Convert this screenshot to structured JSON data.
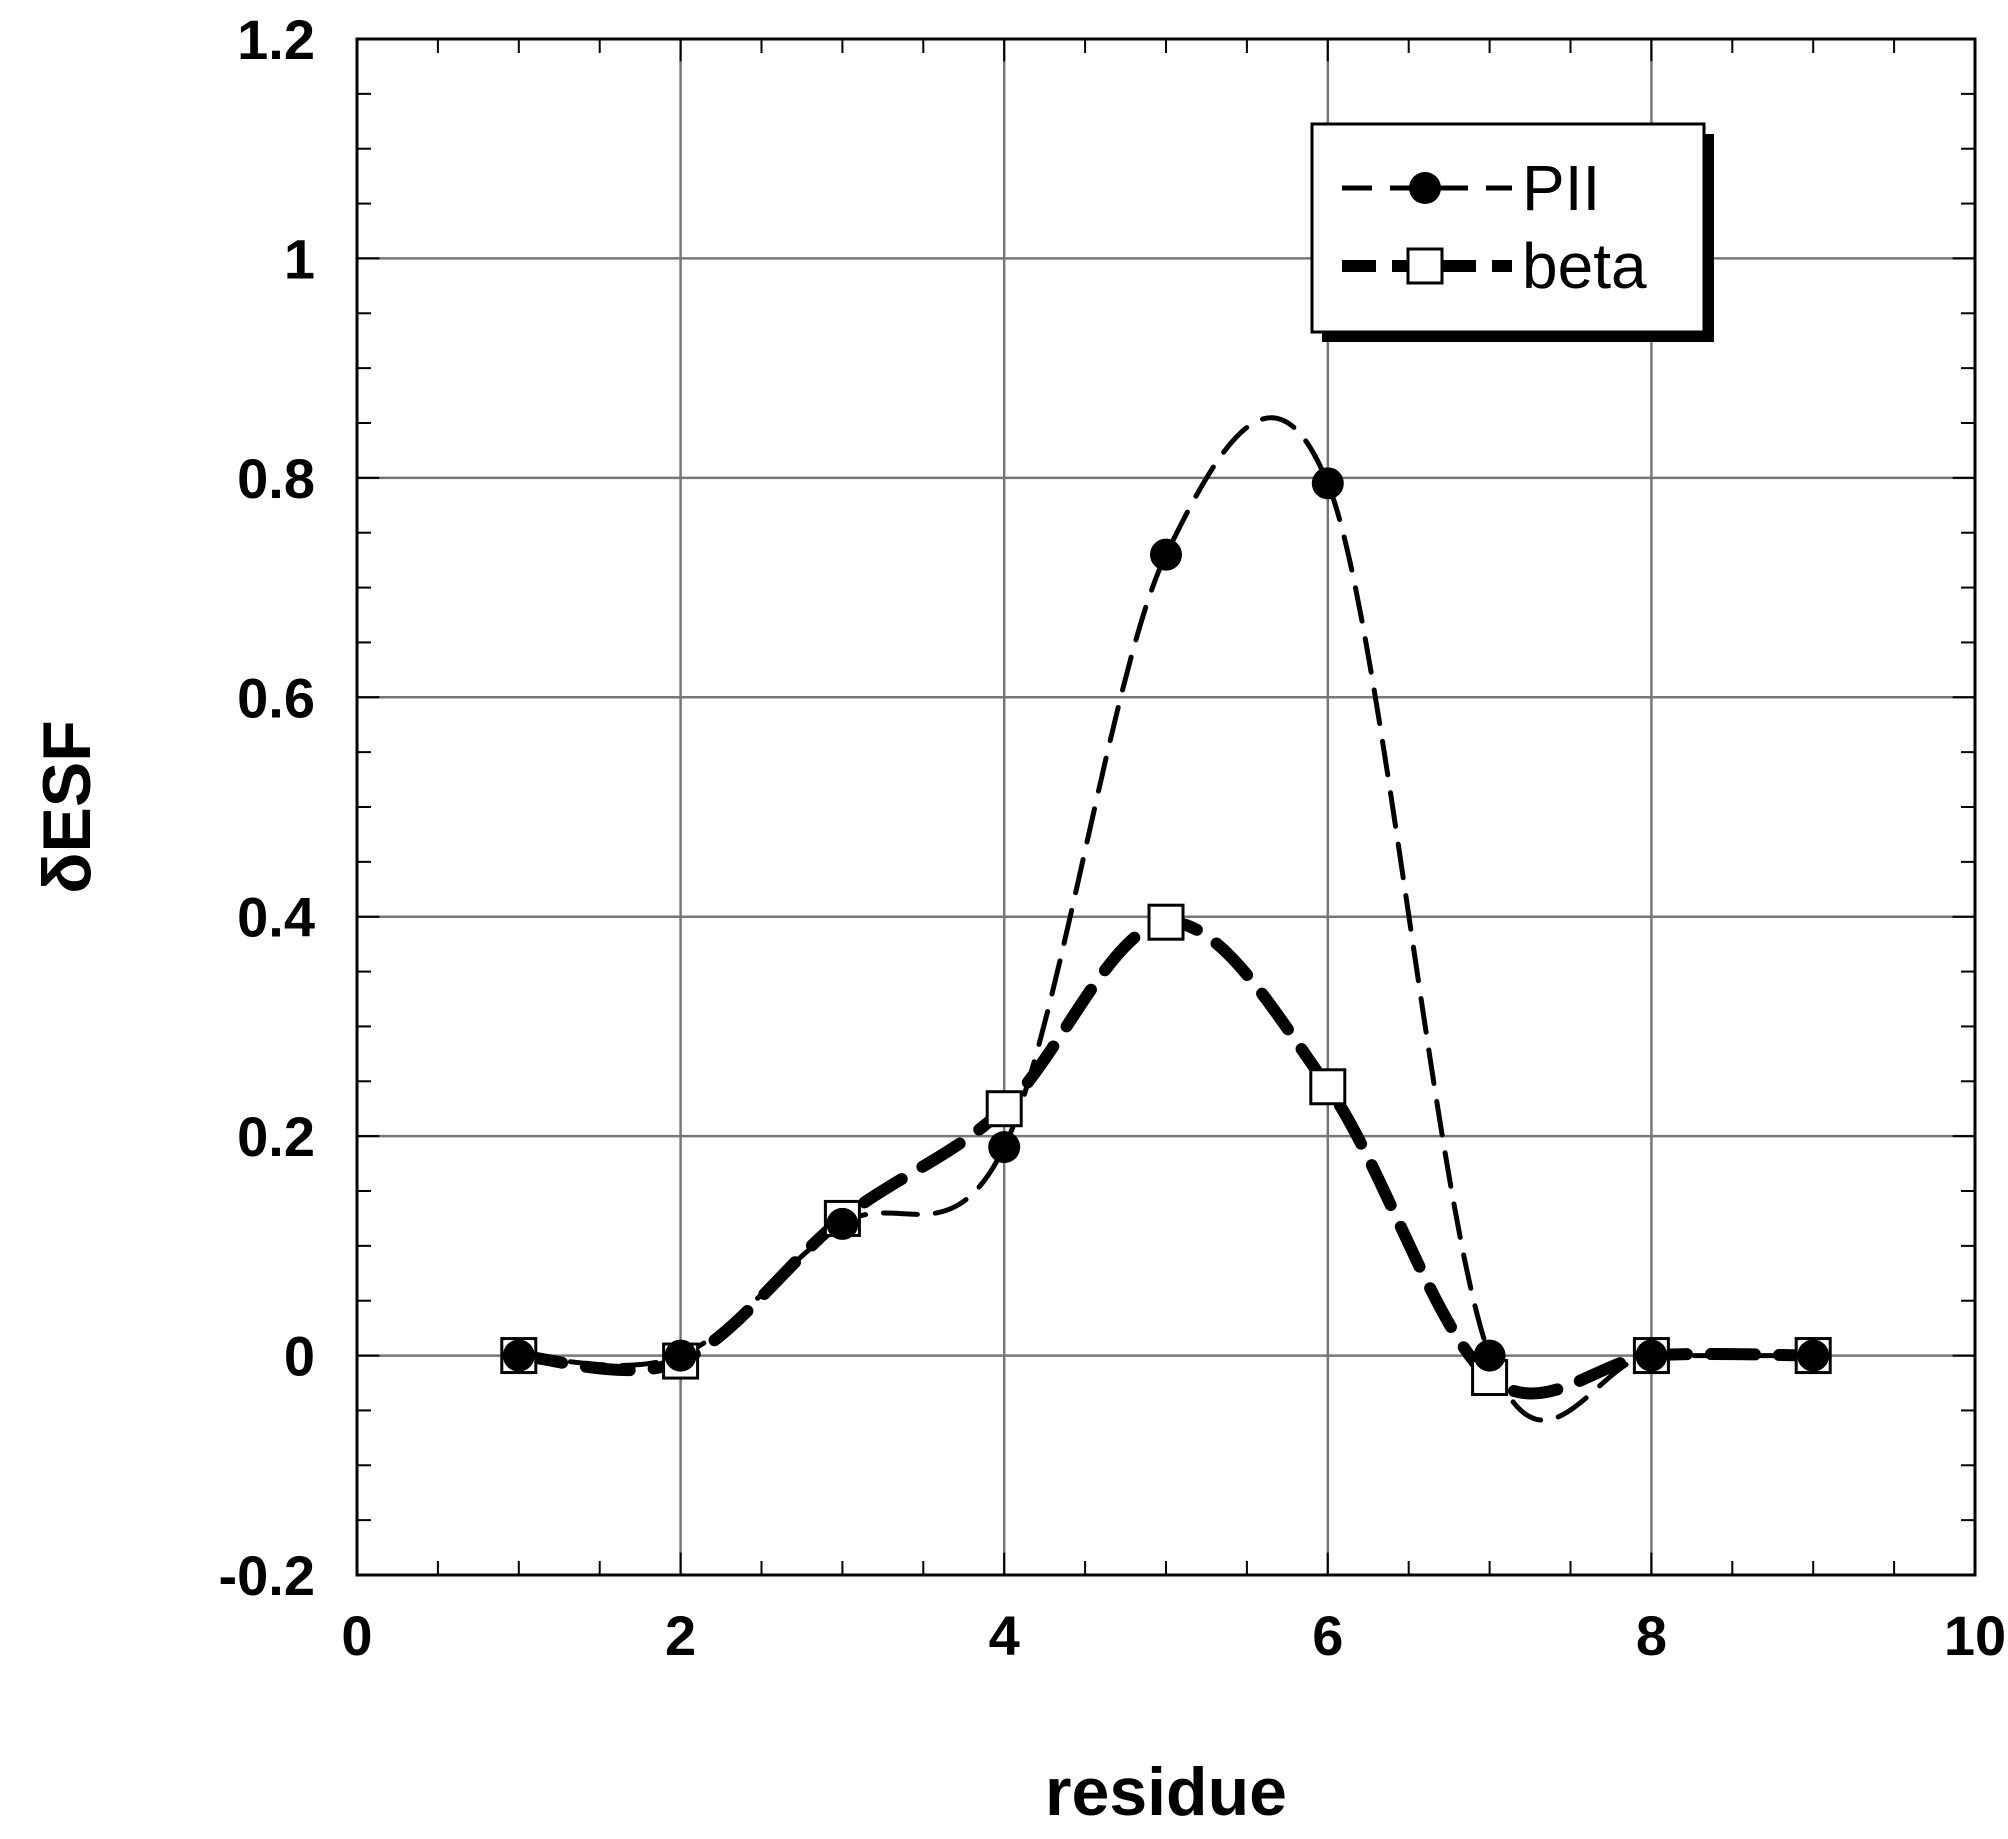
{
  "chart_data": {
    "type": "line",
    "xlabel": "residue",
    "ylabel": "δESF",
    "xlim": [
      0,
      10
    ],
    "ylim": [
      -0.2,
      1.2
    ],
    "xticks": [
      0,
      2,
      4,
      6,
      8,
      10
    ],
    "xtick_labels": [
      "0",
      "2",
      "4",
      "6",
      "8",
      "10"
    ],
    "yticks": [
      -0.2,
      0,
      0.2,
      0.4,
      0.6,
      0.8,
      1,
      1.2
    ],
    "ytick_labels": [
      "-0.2",
      "0",
      "0.2",
      "0.4",
      "0.6",
      "0.8",
      "1",
      "1.2"
    ],
    "grid": true,
    "legend_position": "top-right",
    "series": [
      {
        "name": "PII",
        "marker": "filled-circle",
        "line": "thin-dashed",
        "color": "#000000",
        "x": [
          1,
          2,
          3,
          4,
          5,
          6,
          7,
          8,
          9
        ],
        "y": [
          0.0,
          0.0,
          0.12,
          0.19,
          0.73,
          0.795,
          0.0,
          0.0,
          0.0
        ]
      },
      {
        "name": "beta",
        "marker": "open-square",
        "line": "thick-dashed",
        "color": "#000000",
        "x": [
          1,
          2,
          3,
          4,
          5,
          6,
          7,
          8,
          9
        ],
        "y": [
          0.0,
          -0.005,
          0.125,
          0.225,
          0.395,
          0.245,
          -0.02,
          0.0,
          0.0
        ]
      }
    ]
  }
}
